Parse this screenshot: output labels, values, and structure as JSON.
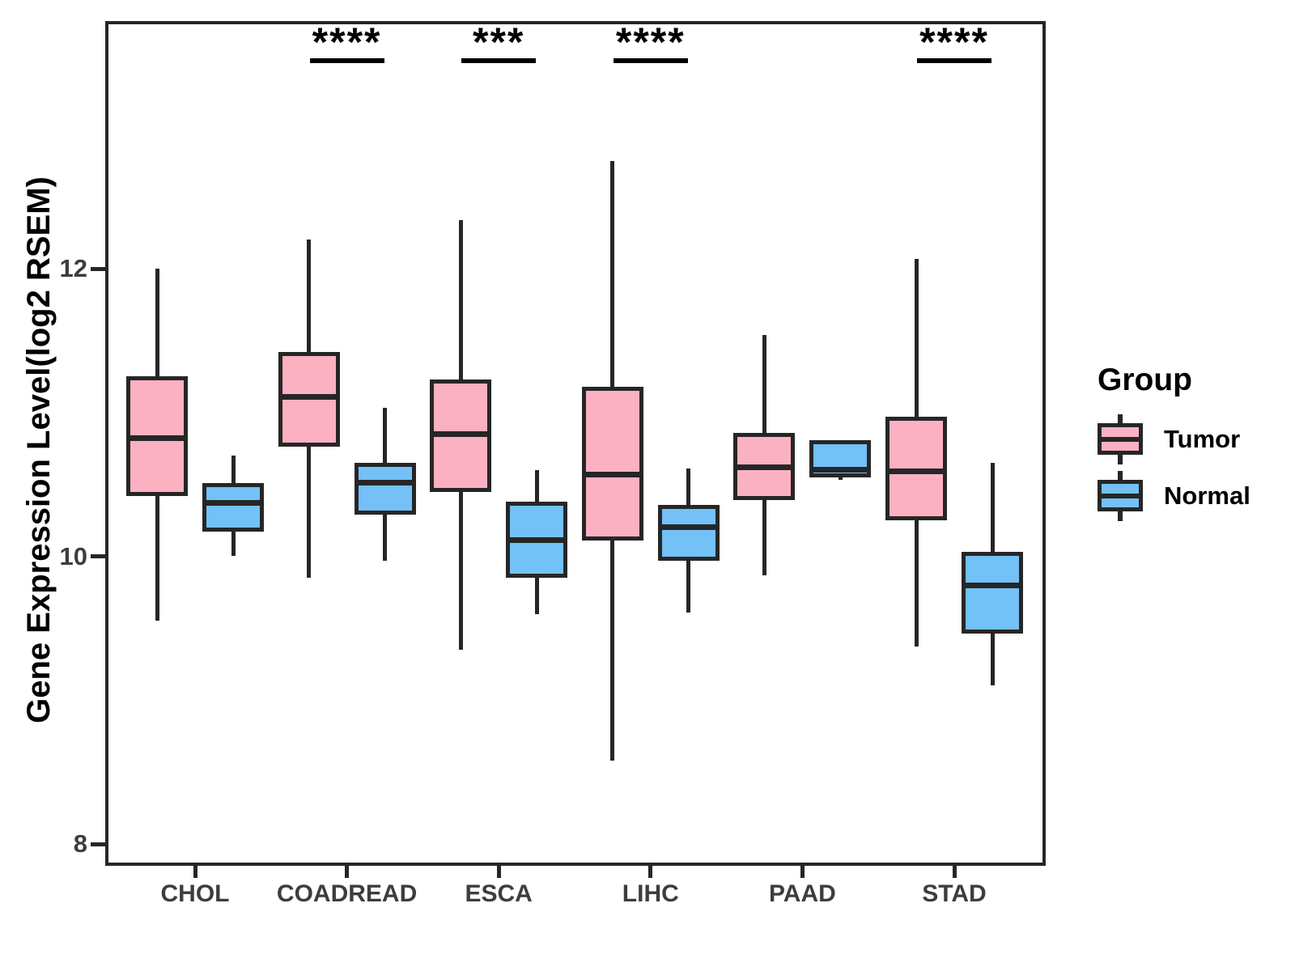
{
  "chart_data": {
    "type": "grouped_boxplot",
    "title": "",
    "ylabel": "Gene Expression Level(log2 RSEM)",
    "xlabel": "",
    "categories": [
      "CHOL",
      "COADREAD",
      "ESCA",
      "LIHC",
      "PAAD",
      "STAD"
    ],
    "yticks": [
      8,
      10,
      12
    ],
    "ylim": [
      7.83,
      13.73
    ],
    "grid": false,
    "legend": {
      "title": "Group",
      "position": "right"
    },
    "series": [
      {
        "name": "Tumor",
        "color": "#FBB1C1",
        "boxes": [
          {
            "category": "CHOL",
            "low": 9.55,
            "q1": 10.42,
            "median": 10.82,
            "q3": 11.25,
            "high": 12.0
          },
          {
            "category": "COADREAD",
            "low": 9.85,
            "q1": 10.76,
            "median": 11.11,
            "q3": 11.42,
            "high": 12.2
          },
          {
            "category": "ESCA",
            "low": 9.35,
            "q1": 10.45,
            "median": 10.85,
            "q3": 11.23,
            "high": 12.34
          },
          {
            "category": "LIHC",
            "low": 8.58,
            "q1": 10.11,
            "median": 10.57,
            "q3": 11.18,
            "high": 12.75
          },
          {
            "category": "PAAD",
            "low": 9.87,
            "q1": 10.39,
            "median": 10.62,
            "q3": 10.86,
            "high": 11.54
          },
          {
            "category": "STAD",
            "low": 9.37,
            "q1": 10.25,
            "median": 10.59,
            "q3": 10.97,
            "high": 12.07
          }
        ]
      },
      {
        "name": "Normal",
        "color": "#73C1F7",
        "boxes": [
          {
            "category": "CHOL",
            "low": 10.0,
            "q1": 10.17,
            "median": 10.37,
            "q3": 10.51,
            "high": 10.7
          },
          {
            "category": "COADREAD",
            "low": 9.97,
            "q1": 10.29,
            "median": 10.51,
            "q3": 10.65,
            "high": 11.03
          },
          {
            "category": "ESCA",
            "low": 9.6,
            "q1": 9.85,
            "median": 10.11,
            "q3": 10.38,
            "high": 10.6
          },
          {
            "category": "LIHC",
            "low": 9.61,
            "q1": 9.97,
            "median": 10.2,
            "q3": 10.36,
            "high": 10.61
          },
          {
            "category": "PAAD",
            "low": 10.53,
            "q1": 10.55,
            "median": 10.6,
            "q3": 10.81,
            "high": 10.81
          },
          {
            "category": "STAD",
            "low": 9.1,
            "q1": 9.46,
            "median": 9.8,
            "q3": 10.03,
            "high": 10.65
          }
        ]
      }
    ],
    "significance": [
      {
        "category": "COADREAD",
        "label": "****"
      },
      {
        "category": "ESCA",
        "label": "***"
      },
      {
        "category": "LIHC",
        "label": "****"
      },
      {
        "category": "STAD",
        "label": "****"
      }
    ],
    "colors": {
      "stroke": "#262626",
      "axis_text": "#3D3D3D",
      "significance": "#000000"
    }
  }
}
